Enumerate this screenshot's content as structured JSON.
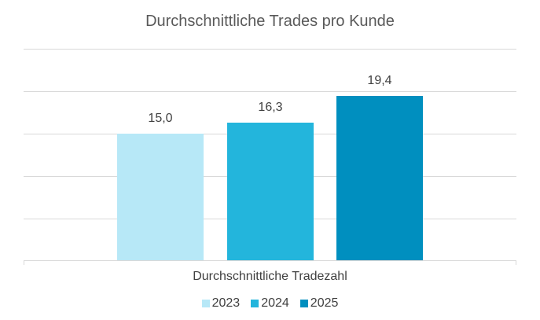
{
  "chart_data": {
    "type": "bar",
    "title": "Durchschnittliche Trades pro Kunde",
    "categories": [
      "Durchschnittliche Tradezahl"
    ],
    "series": [
      {
        "name": "2023",
        "values": [
          15.0
        ],
        "label": "15,0",
        "color": "#b7e8f7"
      },
      {
        "name": "2024",
        "values": [
          16.3
        ],
        "label": "16,3",
        "color": "#23b5dc"
      },
      {
        "name": "2025",
        "values": [
          19.4
        ],
        "label": "19,4",
        "color": "#008fbf"
      }
    ],
    "xlabel": "Durchschnittliche Tradezahl",
    "ylabel": "",
    "ylim": [
      0,
      25
    ],
    "grid": true,
    "legend_position": "bottom"
  }
}
